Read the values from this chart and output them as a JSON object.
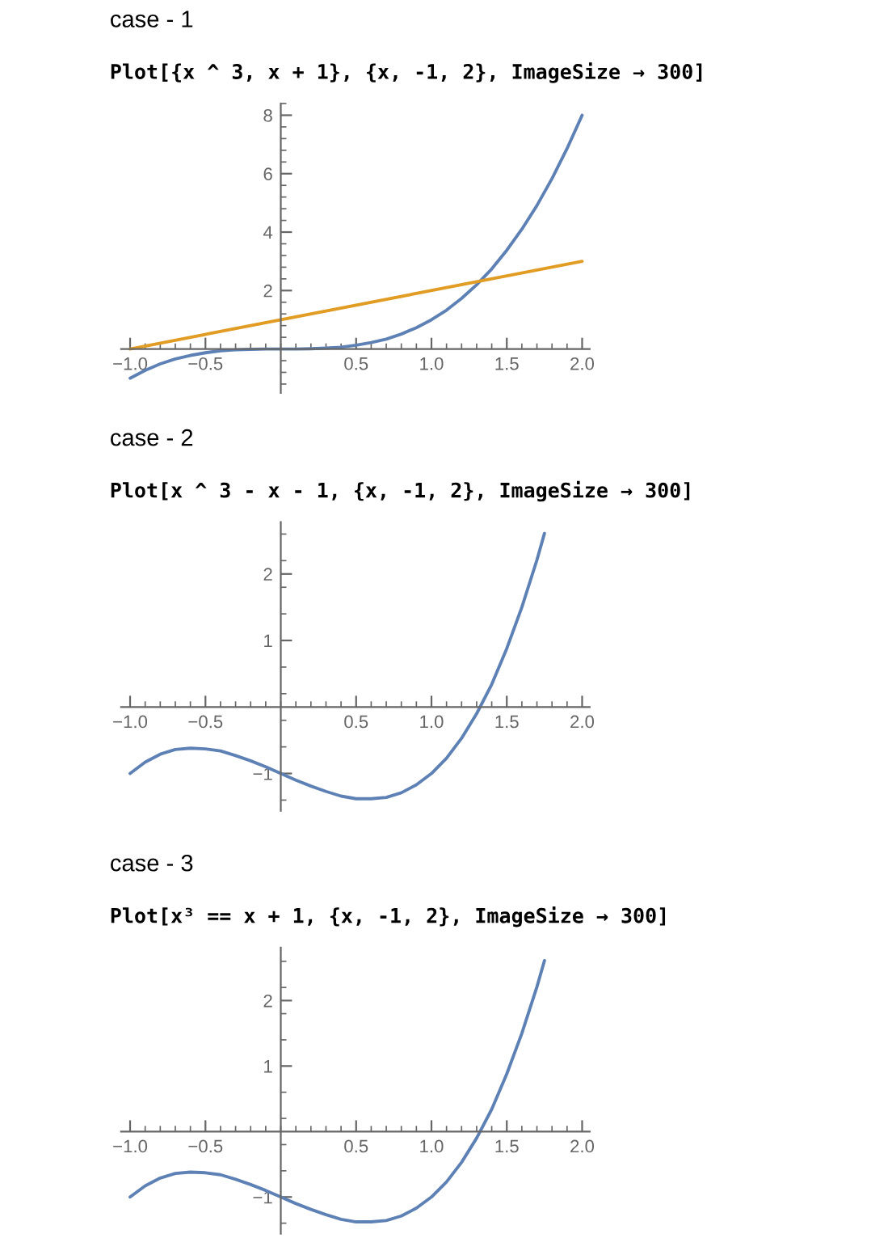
{
  "chart_data": [
    {
      "type": "line",
      "title": "case - 1",
      "subtitle": "Plot[{x ^ 3, x + 1}, {x, -1, 2}, ImageSize → 300]",
      "xlim": [
        -1.06,
        2.05
      ],
      "ylim": [
        -1.5,
        8.4
      ],
      "xticks": [
        {
          "value": -1,
          "label": "−1.0"
        },
        {
          "value": -0.5,
          "label": "−0.5"
        },
        {
          "value": 0.5,
          "label": "0.5"
        },
        {
          "value": 1,
          "label": "1.0"
        },
        {
          "value": 1.5,
          "label": "1.5"
        },
        {
          "value": 2,
          "label": "2.0"
        }
      ],
      "yticks": [
        2,
        4,
        6,
        8
      ],
      "series": [
        {
          "color": "#5e81b5",
          "x": [
            -1.0,
            -0.9,
            -0.8,
            -0.7,
            -0.6,
            -0.5,
            -0.4,
            -0.3,
            -0.2,
            -0.1,
            0,
            0.1,
            0.2,
            0.3,
            0.4,
            0.5,
            0.6,
            0.7,
            0.8,
            0.9,
            1.0,
            1.1,
            1.2,
            1.3,
            1.4,
            1.5,
            1.6,
            1.7,
            1.8,
            1.9,
            2.0
          ],
          "values": [
            -1,
            -0.73,
            -0.51,
            -0.34,
            -0.22,
            -0.13,
            -0.06,
            -0.03,
            -0.01,
            0,
            0,
            0,
            0.01,
            0.03,
            0.06,
            0.13,
            0.22,
            0.34,
            0.51,
            0.73,
            1,
            1.33,
            1.73,
            2.2,
            2.74,
            3.38,
            4.1,
            4.91,
            5.83,
            6.86,
            8
          ]
        },
        {
          "color": "#e19c24",
          "x": [
            -1.0,
            2.0
          ],
          "values": [
            0,
            3
          ]
        }
      ]
    },
    {
      "type": "line",
      "title": "case - 2",
      "subtitle": "Plot[x ^ 3 - x - 1, {x, -1, 2}, ImageSize → 300]",
      "xlim": [
        -1.06,
        2.05
      ],
      "ylim": [
        -1.56,
        2.78
      ],
      "xticks": [
        {
          "value": -1,
          "label": "−1.0"
        },
        {
          "value": -0.5,
          "label": "−0.5"
        },
        {
          "value": 0.5,
          "label": "0.5"
        },
        {
          "value": 1,
          "label": "1.0"
        },
        {
          "value": 1.5,
          "label": "1.5"
        },
        {
          "value": 2,
          "label": "2.0"
        }
      ],
      "yticks": [
        {
          "value": -1,
          "label": "−1"
        },
        1,
        2
      ],
      "series": [
        {
          "color": "#5e81b5",
          "x": [
            -1.0,
            -0.9,
            -0.8,
            -0.7,
            -0.6,
            -0.5,
            -0.4,
            -0.3,
            -0.2,
            -0.1,
            0,
            0.1,
            0.2,
            0.3,
            0.4,
            0.5,
            0.6,
            0.7,
            0.8,
            0.9,
            1.0,
            1.1,
            1.2,
            1.3,
            1.4,
            1.5,
            1.6,
            1.7,
            1.75
          ],
          "values": [
            -1,
            -0.83,
            -0.71,
            -0.64,
            -0.62,
            -0.63,
            -0.66,
            -0.73,
            -0.81,
            -0.9,
            -1,
            -1.1,
            -1.19,
            -1.27,
            -1.34,
            -1.38,
            -1.38,
            -1.36,
            -1.29,
            -1.17,
            -1,
            -0.77,
            -0.47,
            -0.1,
            0.34,
            0.88,
            1.5,
            2.21,
            2.61
          ]
        }
      ]
    },
    {
      "type": "line",
      "title": "case - 3",
      "subtitle": "Plot[x³ == x + 1, {x, -1, 2}, ImageSize → 300]",
      "xlim": [
        -1.06,
        2.05
      ],
      "ylim": [
        -1.56,
        2.81
      ],
      "xticks": [
        {
          "value": -1,
          "label": "−1.0"
        },
        {
          "value": -0.5,
          "label": "−0.5"
        },
        {
          "value": 0.5,
          "label": "0.5"
        },
        {
          "value": 1,
          "label": "1.0"
        },
        {
          "value": 1.5,
          "label": "1.5"
        },
        {
          "value": 2,
          "label": "2.0"
        }
      ],
      "yticks": [
        {
          "value": -1,
          "label": "−1"
        },
        1,
        2
      ],
      "series": [
        {
          "color": "#5e81b5",
          "x": [
            -1.0,
            -0.9,
            -0.8,
            -0.7,
            -0.6,
            -0.5,
            -0.4,
            -0.3,
            -0.2,
            -0.1,
            0,
            0.1,
            0.2,
            0.3,
            0.4,
            0.5,
            0.6,
            0.7,
            0.8,
            0.9,
            1.0,
            1.1,
            1.2,
            1.3,
            1.4,
            1.5,
            1.6,
            1.7,
            1.75
          ],
          "values": [
            -1,
            -0.83,
            -0.71,
            -0.64,
            -0.62,
            -0.63,
            -0.66,
            -0.73,
            -0.81,
            -0.9,
            -1,
            -1.1,
            -1.19,
            -1.27,
            -1.34,
            -1.38,
            -1.38,
            -1.36,
            -1.29,
            -1.17,
            -1,
            -0.77,
            -0.47,
            -0.1,
            0.34,
            0.88,
            1.5,
            2.21,
            2.61
          ]
        }
      ]
    }
  ]
}
